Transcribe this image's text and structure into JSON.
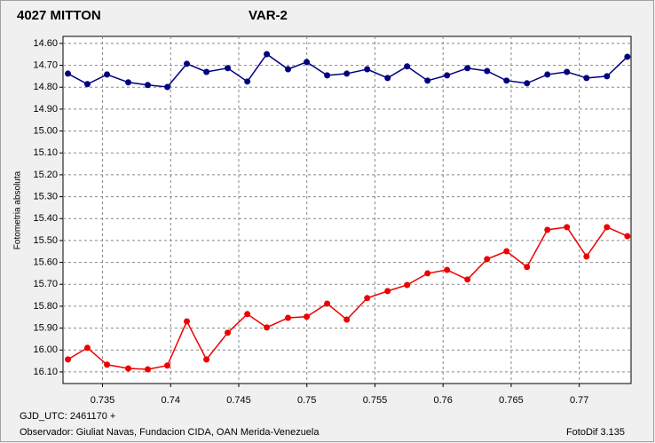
{
  "chart_data": {
    "type": "line",
    "ylabel": "Fotometria absoluta",
    "xlabel": "GJD_UTC: 2461170 +",
    "footer_left": "Observador: Giuliat Navas, Fundacion CIDA, OAN  Merida-Venezuela",
    "footer_right": "FotoDif 3.135",
    "grid": true,
    "xlim": [
      0.7321,
      0.7738
    ],
    "ylim": [
      16.153,
      14.568
    ],
    "xticks": [
      0.735,
      0.74,
      0.745,
      0.75,
      0.755,
      0.76,
      0.765,
      0.77
    ],
    "yticks": [
      {
        "value": 14.6,
        "label": "14.60"
      },
      {
        "value": 14.7,
        "label": "14.70"
      },
      {
        "value": 14.8,
        "label": "14.80"
      },
      {
        "value": 14.9,
        "label": "14.90"
      },
      {
        "value": 15.0,
        "label": "15.00"
      },
      {
        "value": 15.1,
        "label": "15.10"
      },
      {
        "value": 15.2,
        "label": "15.20"
      },
      {
        "value": 15.3,
        "label": "15.30"
      },
      {
        "value": 15.4,
        "label": "15.40"
      },
      {
        "value": 15.5,
        "label": "15.50"
      },
      {
        "value": 15.6,
        "label": "15.60"
      },
      {
        "value": 15.7,
        "label": "15.70"
      },
      {
        "value": 15.8,
        "label": "15.80"
      },
      {
        "value": 15.9,
        "label": "15.90"
      },
      {
        "value": 16.0,
        "label": "16.00"
      },
      {
        "value": 16.1,
        "label": "16.10"
      }
    ],
    "x": [
      0.73246,
      0.73389,
      0.73533,
      0.73689,
      0.73832,
      0.73976,
      0.74119,
      0.74263,
      0.74419,
      0.74563,
      0.74706,
      0.74862,
      0.74999,
      0.75149,
      0.75293,
      0.75443,
      0.75593,
      0.75736,
      0.75886,
      0.76029,
      0.76179,
      0.76323,
      0.76466,
      0.76616,
      0.76766,
      0.76909,
      0.77053,
      0.77203,
      0.77353
    ],
    "series": [
      {
        "name": "4027 MITTON",
        "color": "#ee0000",
        "values": [
          16.043,
          15.99,
          16.067,
          16.084,
          16.088,
          16.071,
          15.869,
          16.043,
          15.921,
          15.836,
          15.897,
          15.853,
          15.848,
          15.788,
          15.861,
          15.763,
          15.731,
          15.703,
          15.65,
          15.634,
          15.678,
          15.585,
          15.549,
          15.621,
          15.451,
          15.439,
          15.573,
          15.439,
          15.48
        ]
      },
      {
        "name": "VAR-2",
        "color": "#000080",
        "values": [
          14.738,
          14.786,
          14.742,
          14.778,
          14.79,
          14.799,
          14.693,
          14.73,
          14.713,
          14.774,
          14.649,
          14.718,
          14.685,
          14.746,
          14.738,
          14.718,
          14.758,
          14.705,
          14.77,
          14.746,
          14.713,
          14.726,
          14.77,
          14.782,
          14.742,
          14.73,
          14.758,
          14.75,
          14.661
        ]
      }
    ]
  }
}
